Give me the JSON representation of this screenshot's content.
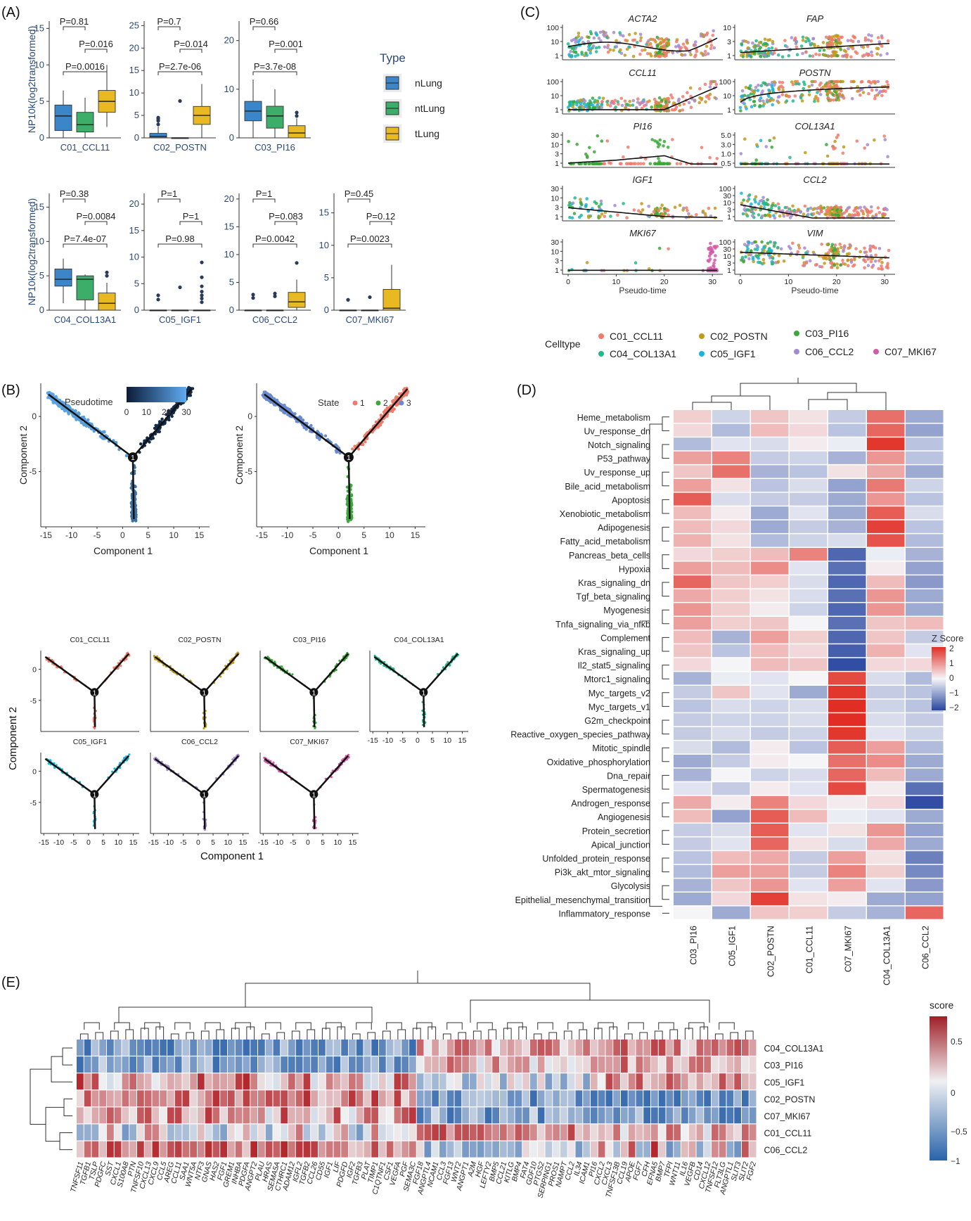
{
  "panels": {
    "A": "(A)",
    "B": "(B)",
    "C": "(C)",
    "D": "(D)",
    "E": "(E)"
  },
  "chart_data": [
    {
      "panel": "A",
      "type": "box",
      "ylabel": "NP10k(log2transformed)",
      "legend": {
        "title": "Type",
        "items": [
          "nLung",
          "ntLung",
          "tLung"
        ],
        "colors": [
          "#3a86c8",
          "#3dae6a",
          "#e8b923"
        ]
      },
      "clusters": [
        {
          "name": "C01_CCL11",
          "ylim": [
            0,
            16
          ],
          "ticks": [
            0,
            5,
            10,
            15
          ],
          "boxes": [
            {
              "q1": 1,
              "med": 3,
              "q3": 4.5,
              "lo": 0,
              "hi": 6.5
            },
            {
              "q1": 0.8,
              "med": 1.8,
              "q3": 3.5,
              "lo": 0,
              "hi": 5.5
            },
            {
              "q1": 3.5,
              "med": 5,
              "q3": 6.5,
              "lo": 1.5,
              "hi": 10
            }
          ],
          "outliers": [
            [],
            [],
            []
          ],
          "pvals": [
            "P=0.81",
            "P=0.016",
            "P=0.0016"
          ]
        },
        {
          "name": "C02_POSTN",
          "ylim": [
            0,
            26
          ],
          "ticks": [
            0,
            5,
            10,
            15,
            20,
            25
          ],
          "boxes": [
            {
              "q1": 0,
              "med": 0.3,
              "q3": 1,
              "lo": 0,
              "hi": 2.5
            },
            {
              "q1": 0,
              "med": 0,
              "q3": 0,
              "lo": 0,
              "hi": 0
            },
            {
              "q1": 3,
              "med": 5,
              "q3": 7,
              "lo": 0,
              "hi": 12
            }
          ],
          "outliers": [
            [
              3,
              3.8,
              4.2,
              4.5
            ],
            [
              8.2
            ],
            []
          ],
          "pvals": [
            "P=0.7",
            "P=0.014",
            "P=2.7e-06"
          ]
        },
        {
          "name": "C03_PI16",
          "ylim": [
            0,
            24
          ],
          "ticks": [
            0,
            10,
            20
          ],
          "boxes": [
            {
              "q1": 3.5,
              "med": 5.5,
              "q3": 7.5,
              "lo": 0,
              "hi": 12
            },
            {
              "q1": 2,
              "med": 4.5,
              "q3": 6.5,
              "lo": 0,
              "hi": 10
            },
            {
              "q1": 0,
              "med": 1,
              "q3": 2.5,
              "lo": 0,
              "hi": 4
            }
          ],
          "outliers": [
            [],
            [],
            [
              4.5,
              5.2
            ]
          ],
          "pvals": [
            "P=0.66",
            "P=0.001",
            "P=3.7e-08"
          ]
        },
        {
          "name": "C04_COL13A1",
          "ylim": [
            0,
            17
          ],
          "ticks": [
            0,
            5,
            10,
            15
          ],
          "boxes": [
            {
              "q1": 3.5,
              "med": 4.5,
              "q3": 6,
              "lo": 1,
              "hi": 7.5
            },
            {
              "q1": 1.5,
              "med": 4.5,
              "q3": 5,
              "lo": 0,
              "hi": 5.2
            },
            {
              "q1": 0,
              "med": 1,
              "q3": 2.5,
              "lo": 0,
              "hi": 4
            }
          ],
          "outliers": [
            [],
            [],
            [
              5,
              5.5
            ]
          ],
          "pvals": [
            "P=0.38",
            "P=0.0084",
            "P=7.4e-07"
          ]
        },
        {
          "name": "C05_IGF1",
          "ylim": [
            0,
            22
          ],
          "ticks": [
            0,
            5,
            10,
            15,
            20
          ],
          "boxes": [
            {
              "q1": 0,
              "med": 0,
              "q3": 0,
              "lo": 0,
              "hi": 0
            },
            {
              "q1": 0,
              "med": 0,
              "q3": 0,
              "lo": 0,
              "hi": 0
            },
            {
              "q1": 0,
              "med": 0,
              "q3": 0,
              "lo": 0,
              "hi": 0
            }
          ],
          "outliers": [
            [
              2,
              2.8
            ],
            [
              4.3
            ],
            [
              1.5,
              2.2,
              2.8,
              3.5,
              4.5,
              6.2,
              9
            ]
          ],
          "pvals": [
            "P=1",
            "P=1",
            "P=0.98"
          ]
        },
        {
          "name": "C06_CCL2",
          "ylim": [
            0,
            21
          ],
          "ticks": [
            0,
            5,
            10,
            15,
            20
          ],
          "boxes": [
            {
              "q1": 0,
              "med": 0,
              "q3": 0,
              "lo": 0,
              "hi": 0
            },
            {
              "q1": 0,
              "med": 0,
              "q3": 0,
              "lo": 0,
              "hi": 0
            },
            {
              "q1": 0.5,
              "med": 1.5,
              "q3": 3.2,
              "lo": 0,
              "hi": 5.5
            }
          ],
          "outliers": [
            [
              2.2,
              2.8
            ],
            [
              2.5,
              3
            ],
            [
              8.5
            ]
          ],
          "pvals": [
            "P=1",
            "P=0.083",
            "P=0.0042"
          ]
        },
        {
          "name": "C07_MKI67",
          "ylim": [
            0,
            18
          ],
          "ticks": [
            0,
            5,
            10,
            15
          ],
          "boxes": [
            {
              "q1": 0,
              "med": 0,
              "q3": 0,
              "lo": 0,
              "hi": 0
            },
            {
              "q1": 0,
              "med": 0,
              "q3": 0,
              "lo": 0,
              "hi": 0
            },
            {
              "q1": 0,
              "med": 0.3,
              "q3": 3.2,
              "lo": 0,
              "hi": 7
            }
          ],
          "outliers": [
            [
              1.6
            ],
            [
              2
            ],
            []
          ],
          "pvals": [
            "P=0.45",
            "P=0.12",
            "P=0.0023"
          ]
        }
      ]
    },
    {
      "panel": "C",
      "type": "scatter",
      "xlabel": "Pseudo-time",
      "xticks": [
        0,
        10,
        20,
        30
      ],
      "genes": [
        "ACTA2",
        "FAP",
        "CCL11",
        "POSTN",
        "PI16",
        "COL13A1",
        "IGF1",
        "CCL2",
        "MKI67",
        "VIM"
      ],
      "yticks": [
        [
          "1",
          "10",
          "100"
        ],
        [
          "1",
          "3",
          "10"
        ],
        [
          "1",
          "10",
          "100"
        ],
        [
          "1",
          "10",
          "100"
        ],
        [
          "1",
          "3",
          "10",
          "30"
        ],
        [
          "0.5",
          "1.0",
          "3.0",
          "5.0"
        ],
        [
          "1",
          "3",
          "10",
          "30"
        ],
        [
          "1",
          "3",
          "10",
          "30",
          "100"
        ],
        [
          "1",
          "3",
          "10",
          "30"
        ],
        [
          "1",
          "3",
          "10",
          "30",
          "100"
        ]
      ],
      "legend": {
        "title": "Celltype",
        "items": [
          "C01_CCL11",
          "C02_POSTN",
          "C03_PI16",
          "C04_COL13A1",
          "C05_IGF1",
          "C06_CCL2",
          "C07_MKI67"
        ],
        "colors": [
          "#f07a6c",
          "#c09a1a",
          "#3aa83a",
          "#22b88a",
          "#1ab4d8",
          "#a48ad0",
          "#d45aa8"
        ]
      }
    },
    {
      "panel": "B",
      "type": "scatter",
      "xlabel": "Component 1",
      "ylabel": "Component 2",
      "xticks": [
        -15,
        -10,
        -5,
        0,
        5,
        10,
        15
      ],
      "yticks": [
        0,
        -5
      ],
      "pseudotime_legend": {
        "title": "Pseudotime",
        "ticks": [
          0,
          10,
          20,
          30
        ]
      },
      "state_legend": {
        "title": "State",
        "items": [
          "1",
          "2",
          "3"
        ],
        "colors": [
          "#f07a6c",
          "#3aa83a",
          "#6a8ad0"
        ]
      },
      "small_titles": [
        "C01_CCL11",
        "C02_POSTN",
        "C03_PI16",
        "C04_COL13A1",
        "C05_IGF1",
        "C06_CCL2",
        "C07_MKI67"
      ],
      "small_colors": [
        "#f07a6c",
        "#c09a1a",
        "#3aa83a",
        "#22b88a",
        "#1ab4d8",
        "#a48ad0",
        "#d45aa8"
      ]
    },
    {
      "panel": "D",
      "type": "heatmap",
      "legend_title": "Z Score",
      "legend_ticks": [
        "2",
        "1",
        "0",
        "−1",
        "−2"
      ],
      "columns": [
        "C03_PI16",
        "C05_IGF1",
        "C02_POSTN",
        "C01_CCL11",
        "C07_MKI67",
        "C04_COL13A1",
        "C06_CCL2"
      ],
      "rows": [
        "Heme_metabolism",
        "Uv_response_dn",
        "Notch_signaling",
        "P53_pathway",
        "Uv_response_up",
        "Bile_acid_metabolism",
        "Apoptosis",
        "Xenobiotic_metabolism",
        "Adipogenesis",
        "Fatty_acid_metabolism",
        "Pancreas_beta_cells",
        "Hypoxia",
        "Kras_signaling_dn",
        "Tgf_beta_signaling",
        "Myogenesis",
        "Tnfa_signaling_via_nfkb",
        "Complement",
        "Kras_signaling_up",
        "Il2_stat5_signaling",
        "Mtorc1_signaling",
        "Myc_targets_v2",
        "Myc_targets_v1",
        "G2m_checkpoint",
        "Reactive_oxygen_species_pathway",
        "Mitotic_spindle",
        "Oxidative_phosphorylation",
        "Dna_repair",
        "Spermatogenesis",
        "Androgen_response",
        "Angiogenesis",
        "Protein_secretion",
        "Apical_junction",
        "Unfolded_protein_response",
        "Pi3k_akt_mtor_signaling",
        "Glycolysis",
        "Epithelial_mesenchymal_transition",
        "Inflammatory_response"
      ],
      "values": [
        [
          0.4,
          -0.4,
          0.5,
          0.2,
          -0.5,
          1.4,
          -0.9
        ],
        [
          0.3,
          -0.7,
          0.6,
          0.3,
          -0.6,
          1.5,
          -1.0
        ],
        [
          -0.7,
          -0.2,
          -0.3,
          0.1,
          -0.1,
          2.0,
          -0.6
        ],
        [
          0.9,
          1.2,
          -0.5,
          -0.4,
          -0.8,
          1.0,
          -0.6
        ],
        [
          0.5,
          1.4,
          -0.8,
          -0.6,
          0.2,
          0.8,
          -0.9
        ],
        [
          0.9,
          0.2,
          -0.6,
          -0.3,
          -1.0,
          1.3,
          -0.4
        ],
        [
          1.6,
          -0.3,
          -0.5,
          -0.5,
          -0.9,
          1.0,
          -0.6
        ],
        [
          0.6,
          0.1,
          -0.9,
          -0.2,
          -0.9,
          1.6,
          -0.3
        ],
        [
          0.6,
          0.3,
          -0.9,
          -0.5,
          -0.8,
          1.9,
          -0.6
        ],
        [
          0.7,
          0.2,
          -0.7,
          -0.4,
          -0.3,
          1.7,
          -0.7
        ],
        [
          0.3,
          0.4,
          0.6,
          1.2,
          -1.7,
          -0.1,
          -0.8
        ],
        [
          0.9,
          0.6,
          1.1,
          -0.2,
          -1.6,
          0.1,
          -1.0
        ],
        [
          1.5,
          0.5,
          0.4,
          -0.3,
          -1.7,
          0.6,
          -1.1
        ],
        [
          0.8,
          0.4,
          0.2,
          -0.3,
          -1.6,
          1.0,
          -0.9
        ],
        [
          1.0,
          0.4,
          0.1,
          -0.4,
          -1.7,
          1.0,
          -0.9
        ],
        [
          0.9,
          0.4,
          0.5,
          0.0,
          -1.6,
          0.5,
          0.6
        ],
        [
          0.6,
          -0.8,
          0.9,
          0.4,
          -1.7,
          0.5,
          -0.5
        ],
        [
          0.5,
          -0.6,
          0.6,
          0.3,
          -1.8,
          0.7,
          -0.2
        ],
        [
          0.3,
          0.0,
          0.6,
          0.5,
          -2.0,
          0.3,
          0.3
        ],
        [
          -0.8,
          -0.1,
          -0.2,
          0.0,
          1.8,
          -0.3,
          -0.7
        ],
        [
          -0.5,
          0.5,
          -0.2,
          -0.9,
          2.0,
          -0.5,
          -0.6
        ],
        [
          -0.6,
          -0.3,
          -0.4,
          -0.3,
          2.1,
          -0.4,
          -0.6
        ],
        [
          -0.5,
          -0.4,
          -0.4,
          -0.3,
          2.1,
          -0.3,
          -0.5
        ],
        [
          -0.5,
          -0.3,
          -0.5,
          -0.4,
          2.0,
          -0.2,
          -0.4
        ],
        [
          -0.3,
          -0.7,
          0.1,
          -0.6,
          1.6,
          0.9,
          -0.7
        ],
        [
          -0.9,
          -0.5,
          0.1,
          0.0,
          1.4,
          1.1,
          -0.9
        ],
        [
          -0.8,
          0.0,
          -0.4,
          -0.3,
          1.5,
          0.6,
          -0.9
        ],
        [
          -0.2,
          -0.5,
          0.1,
          -0.2,
          1.8,
          0.1,
          -1.6
        ],
        [
          0.8,
          0.1,
          1.2,
          0.3,
          0.1,
          0.3,
          -2.0
        ],
        [
          0.6,
          -1.0,
          1.6,
          0.6,
          -0.1,
          -0.2,
          -0.9
        ],
        [
          -0.5,
          -0.3,
          1.6,
          -0.2,
          0.2,
          1.0,
          -1.0
        ],
        [
          -0.5,
          -0.2,
          1.5,
          0.2,
          -0.3,
          0.8,
          -0.9
        ],
        [
          -0.6,
          0.6,
          0.8,
          -0.5,
          0.9,
          0.2,
          -1.4
        ],
        [
          -0.7,
          0.9,
          0.9,
          -0.5,
          1.2,
          0.4,
          -1.3
        ],
        [
          -0.8,
          0.5,
          1.0,
          -0.2,
          0.9,
          -0.2,
          -1.1
        ],
        [
          -0.9,
          0.3,
          1.9,
          0.2,
          0.1,
          -0.9,
          -1.0
        ],
        [
          0.0,
          -0.9,
          0.5,
          0.4,
          -0.5,
          -0.8,
          1.5
        ]
      ]
    },
    {
      "panel": "E",
      "type": "heatmap",
      "legend_title": "score",
      "legend_ticks": [
        "0.5",
        "0",
        "−0.5",
        "−1"
      ],
      "rows": [
        "C04_COL13A1",
        "C03_PI16",
        "C05_IGF1",
        "C02_POSTN",
        "C07_MKI67",
        "C01_CCL11",
        "C06_CCL2"
      ],
      "columns": [
        "TNFSF11",
        "TGFB1",
        "TSLP",
        "PDGFC",
        "SST",
        "CXCL1",
        "S100A8",
        "PTN",
        "TNFSF10",
        "CXCL13",
        "CXCL9",
        "CCL5",
        "AREG",
        "CCL11",
        "SAA1",
        "WNT5A",
        "NTF3",
        "GNAS",
        "HAS2",
        "FGF1",
        "GREM1",
        "INHBA",
        "PDGFA",
        "ANGPT2",
        "PLAU",
        "HRAS",
        "SEMA5A",
        "CTHRC1",
        "ADAM12",
        "IGFL2",
        "TGFB2",
        "CCL26",
        "CD55",
        "IGF1",
        "LIF",
        "PDGFD",
        "IGF2",
        "TGFB3",
        "PLAT",
        "TIMP1",
        "C1QTNF1",
        "CSF1",
        "VEGFA",
        "PGF",
        "SEMA3C",
        "FGF18",
        "ANGPTL4",
        "NCAM1",
        "CCL3",
        "FGF13",
        "WNT2",
        "ANGPT1",
        "A2M",
        "HGF",
        "LEFTY2",
        "BMP5",
        "CCL21",
        "KITLG",
        "BMP4",
        "FAT4",
        "GDF10",
        "PTGS2",
        "SERPING1",
        "PROS1",
        "NAMPT",
        "CCL2",
        "IL34",
        "ICAM1",
        "PI16",
        "CXCL2",
        "CXCL3",
        "TNFSF13B",
        "CCL19",
        "APOE",
        "FGF7",
        "CFH",
        "EFNA5",
        "BMP7",
        "TFPI",
        "WNT11",
        "IL16",
        "VEGFB",
        "CD14",
        "CXCL12",
        "TNFSF12",
        "FLT3LG",
        "ANGPTL1",
        "SLIT3",
        "SLIT2",
        "FGF2"
      ]
    }
  ]
}
